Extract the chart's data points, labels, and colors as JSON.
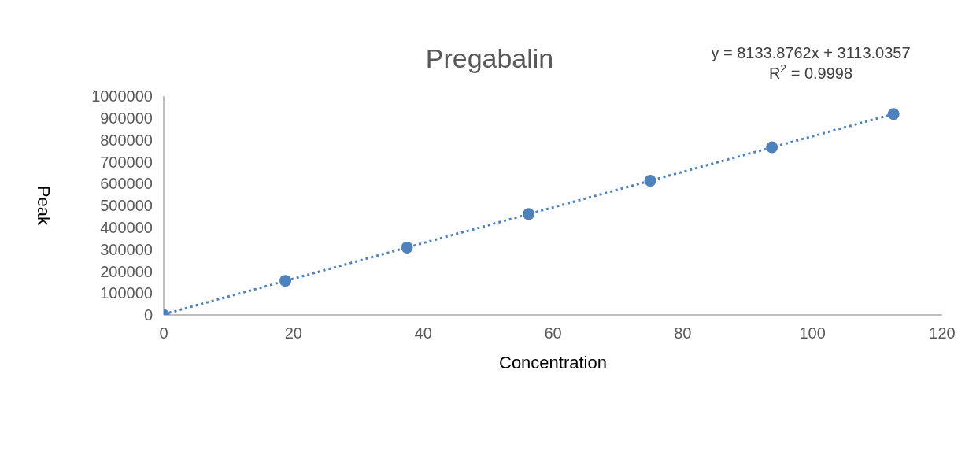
{
  "chart_data": {
    "type": "scatter",
    "title": "Pregabalin",
    "xlabel": "Concentration",
    "ylabel": "Peak",
    "annotations": [
      "y = 8133.8762x + 3113.0357",
      "R$^{2}$ = 0.9998"
    ],
    "xlim": [
      0,
      120
    ],
    "xticks": [
      0,
      20,
      40,
      60,
      80,
      100,
      120
    ],
    "ylim": [
      0,
      1000000
    ],
    "yticks": [
      0,
      100000,
      200000,
      300000,
      400000,
      500000,
      600000,
      700000,
      800000,
      900000,
      1000000
    ],
    "marker": "circle",
    "series": [
      {
        "color": "#4f81bd",
        "x": [
          0,
          18.75,
          37.5,
          56.25,
          75,
          93.75,
          112.5
        ],
        "values": [
          0,
          156000,
          308000,
          461000,
          613000,
          766000,
          918000
        ]
      },
      {
        "type": "line",
        "color": "#4f81bd",
        "line_style": "dotted",
        "marker": "none",
        "x": [
          0,
          112.5
        ],
        "values": [
          3000,
          918000
        ]
      }
    ]
  }
}
